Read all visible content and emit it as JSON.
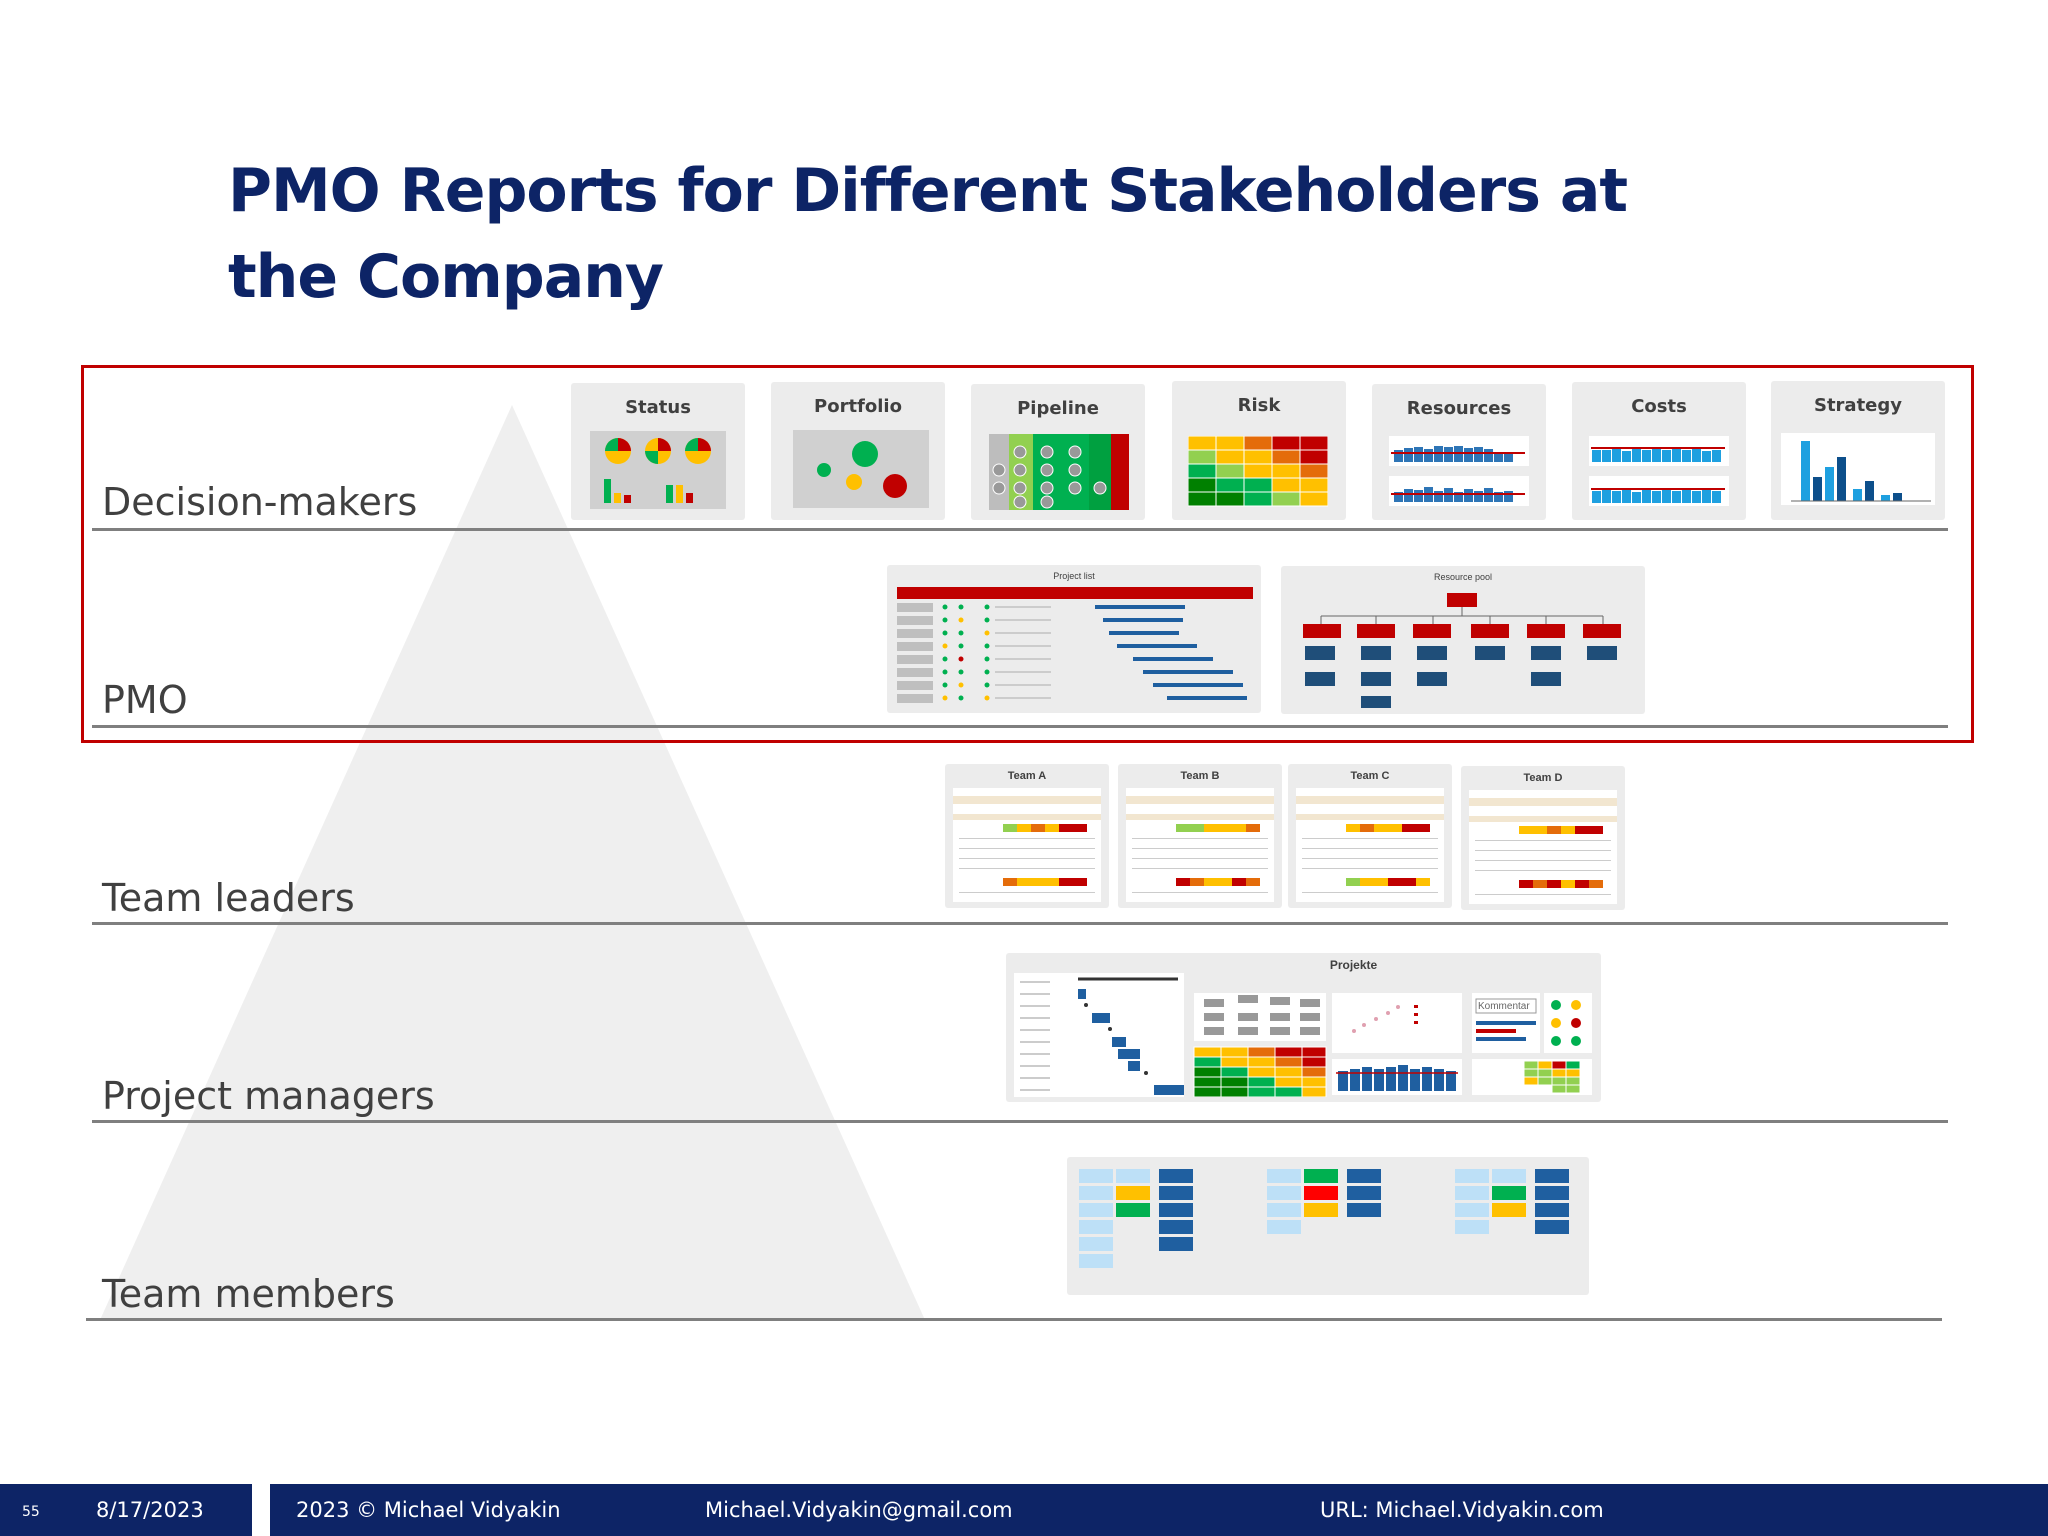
{
  "slide": {
    "title": "PMO Reports for Different Stakeholders at the Company"
  },
  "levels": [
    {
      "label": "Decision-makers"
    },
    {
      "label": "PMO"
    },
    {
      "label": "Team leaders"
    },
    {
      "label": "Project managers"
    },
    {
      "label": "Team members"
    }
  ],
  "decision_cards": [
    {
      "title": "Status"
    },
    {
      "title": "Portfolio"
    },
    {
      "title": "Pipeline"
    },
    {
      "title": "Risk"
    },
    {
      "title": "Resources"
    },
    {
      "title": "Costs"
    },
    {
      "title": "Strategy"
    }
  ],
  "pmo_cards": [
    {
      "title": "Project list"
    },
    {
      "title": "Resource pool"
    }
  ],
  "team_cards": [
    {
      "title": "Team A"
    },
    {
      "title": "Team B"
    },
    {
      "title": "Team C"
    },
    {
      "title": "Team D"
    }
  ],
  "pm_card": {
    "title": "Projekte",
    "comment": "Kommentar"
  },
  "colors": {
    "navy": "#0d2466",
    "highlight": "#c00000",
    "green": "#00b050",
    "yellow": "#ffc000",
    "red": "#c00000",
    "blue": "#1f5fa0"
  },
  "footer": {
    "page": "55",
    "date": "8/17/2023",
    "copyright": "2023 © Michael Vidyakin",
    "email": "Michael.Vidyakin@gmail.com",
    "url": "URL: Michael.Vidyakin.com"
  }
}
